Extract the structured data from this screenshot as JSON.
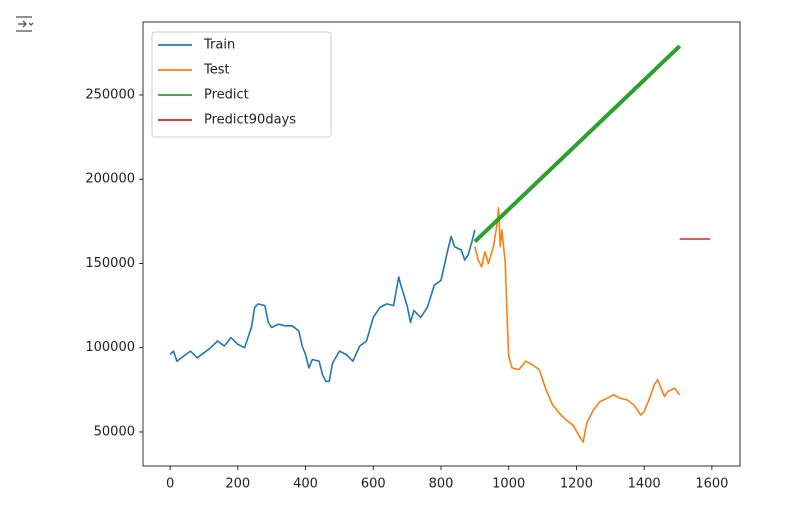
{
  "chart_data": {
    "type": "line",
    "xlim": [
      -80,
      1683
    ],
    "xticks": [
      0,
      200,
      400,
      600,
      800,
      1000,
      1200,
      1400,
      1600
    ],
    "ylim": [
      29800,
      293300
    ],
    "yticks": [
      50000,
      100000,
      150000,
      200000,
      250000
    ],
    "legend": "upper left",
    "series": [
      {
        "name": "Train",
        "color": "#1f77b4",
        "x": [
          0,
          10,
          20,
          40,
          60,
          80,
          100,
          120,
          140,
          160,
          180,
          200,
          220,
          240,
          250,
          260,
          280,
          290,
          300,
          320,
          340,
          360,
          380,
          390,
          400,
          410,
          420,
          440,
          450,
          460,
          470,
          480,
          500,
          520,
          540,
          560,
          580,
          600,
          620,
          640,
          660,
          675,
          680,
          700,
          710,
          720,
          740,
          760,
          780,
          800,
          820,
          830,
          840,
          860,
          870,
          880,
          890,
          900
        ],
        "values": [
          96000,
          98000,
          92000,
          95000,
          98000,
          94000,
          97000,
          100000,
          104000,
          101000,
          106000,
          102000,
          100000,
          112000,
          124000,
          126000,
          125000,
          115000,
          112000,
          114000,
          113000,
          113000,
          110000,
          101000,
          96000,
          88000,
          93000,
          92000,
          84000,
          80000,
          80000,
          91000,
          98000,
          96000,
          92000,
          101000,
          104000,
          118000,
          124000,
          126000,
          125000,
          142000,
          138000,
          125000,
          115000,
          122000,
          118000,
          124000,
          137000,
          140000,
          158000,
          166000,
          160000,
          158000,
          152000,
          155000,
          162000,
          170000
        ]
      },
      {
        "name": "Test",
        "color": "#ff7f0e",
        "x": [
          900,
          910,
          920,
          930,
          940,
          955,
          965,
          970,
          975,
          980,
          990,
          995,
          1000,
          1010,
          1030,
          1050,
          1070,
          1090,
          1110,
          1130,
          1150,
          1170,
          1190,
          1210,
          1220,
          1230,
          1250,
          1270,
          1290,
          1310,
          1330,
          1350,
          1370,
          1390,
          1400,
          1420,
          1430,
          1440,
          1450,
          1460,
          1470,
          1490,
          1505
        ],
        "values": [
          160000,
          152000,
          148000,
          157000,
          150000,
          160000,
          173000,
          183000,
          160000,
          170000,
          150000,
          120000,
          95000,
          88000,
          87000,
          92000,
          90000,
          87000,
          75000,
          66000,
          61000,
          57000,
          54000,
          47000,
          44000,
          55000,
          63000,
          68000,
          70000,
          72000,
          70000,
          69000,
          66000,
          60000,
          62000,
          72000,
          78000,
          81000,
          76000,
          71000,
          74000,
          76000,
          72000
        ]
      },
      {
        "name": "Predict",
        "color": "#2ca02c",
        "x": [
          900,
          1505
        ],
        "values": [
          163000,
          279000
        ]
      },
      {
        "name": "Predict90days",
        "color": "#d62728",
        "x": [
          1505,
          1595
        ],
        "values": [
          164500,
          164500
        ]
      }
    ]
  }
}
